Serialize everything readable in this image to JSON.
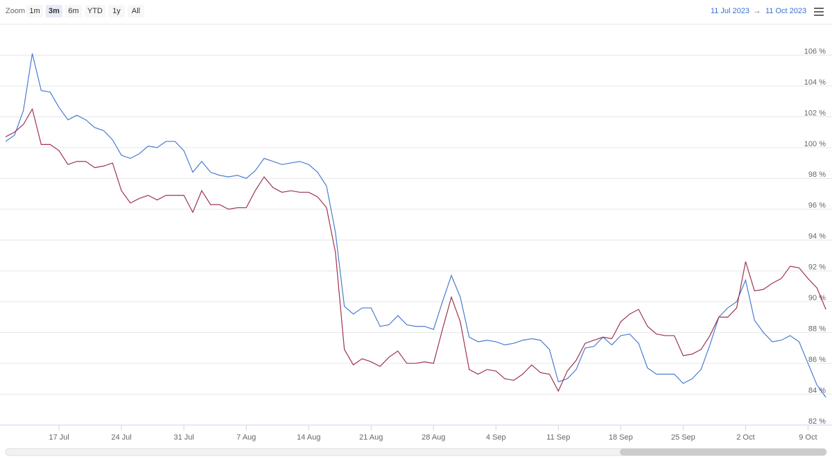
{
  "chart_data": {
    "type": "line",
    "zoom_label": "Zoom",
    "range_buttons": [
      "1m",
      "3m",
      "6m",
      "YTD",
      "1y",
      "All"
    ],
    "selected_button": "3m",
    "range_from": "11 Jul 2023",
    "range_arrow": "→",
    "range_to": "11 Oct 2023",
    "categories": [
      "11 Jul",
      "12 Jul",
      "13 Jul",
      "14 Jul",
      "15 Jul",
      "16 Jul",
      "17 Jul",
      "18 Jul",
      "19 Jul",
      "20 Jul",
      "21 Jul",
      "22 Jul",
      "23 Jul",
      "24 Jul",
      "25 Jul",
      "26 Jul",
      "27 Jul",
      "28 Jul",
      "29 Jul",
      "30 Jul",
      "31 Jul",
      "1 Aug",
      "2 Aug",
      "3 Aug",
      "4 Aug",
      "5 Aug",
      "6 Aug",
      "7 Aug",
      "8 Aug",
      "9 Aug",
      "10 Aug",
      "11 Aug",
      "12 Aug",
      "13 Aug",
      "14 Aug",
      "15 Aug",
      "16 Aug",
      "17 Aug",
      "18 Aug",
      "19 Aug",
      "20 Aug",
      "21 Aug",
      "22 Aug",
      "23 Aug",
      "24 Aug",
      "25 Aug",
      "26 Aug",
      "27 Aug",
      "28 Aug",
      "29 Aug",
      "30 Aug",
      "31 Aug",
      "1 Sep",
      "2 Sep",
      "3 Sep",
      "4 Sep",
      "5 Sep",
      "6 Sep",
      "7 Sep",
      "8 Sep",
      "9 Sep",
      "10 Sep",
      "11 Sep",
      "12 Sep",
      "13 Sep",
      "14 Sep",
      "15 Sep",
      "16 Sep",
      "17 Sep",
      "18 Sep",
      "19 Sep",
      "20 Sep",
      "21 Sep",
      "22 Sep",
      "23 Sep",
      "24 Sep",
      "25 Sep",
      "26 Sep",
      "27 Sep",
      "28 Sep",
      "29 Sep",
      "30 Sep",
      "1 Oct",
      "2 Oct",
      "3 Oct",
      "4 Oct",
      "5 Oct",
      "6 Oct",
      "7 Oct",
      "8 Oct",
      "9 Oct",
      "10 Oct",
      "11 Oct"
    ],
    "xticks": [
      "17 Jul",
      "24 Jul",
      "31 Jul",
      "7 Aug",
      "14 Aug",
      "21 Aug",
      "28 Aug",
      "4 Sep",
      "11 Sep",
      "18 Sep",
      "25 Sep",
      "2 Oct",
      "9 Oct"
    ],
    "series": [
      {
        "color": "#4a7bd0",
        "values": [
          100.4,
          100.8,
          102.4,
          106.1,
          103.7,
          103.6,
          102.6,
          101.8,
          102.1,
          101.8,
          101.3,
          101.1,
          100.5,
          99.5,
          99.3,
          99.6,
          100.1,
          100.0,
          100.4,
          100.4,
          99.8,
          98.4,
          99.1,
          98.4,
          98.2,
          98.1,
          98.2,
          98.0,
          98.5,
          99.3,
          99.1,
          98.9,
          99.0,
          99.1,
          98.9,
          98.4,
          97.5,
          94.5,
          89.7,
          89.2,
          89.6,
          89.6,
          88.4,
          88.5,
          89.1,
          88.5,
          88.4,
          88.4,
          88.2,
          90.0,
          91.7,
          90.3,
          87.7,
          87.4,
          87.5,
          87.4,
          87.2,
          87.3,
          87.5,
          87.6,
          87.5,
          86.9,
          84.8,
          85.0,
          85.6,
          87.0,
          87.1,
          87.7,
          87.2,
          87.8,
          87.9,
          87.3,
          85.7,
          85.3,
          85.3,
          85.3,
          84.7,
          85.0,
          85.6,
          87.2,
          89.0,
          89.6,
          90.0,
          91.4,
          88.8,
          88.0,
          87.4,
          87.5,
          87.8,
          87.4,
          86.0,
          84.6,
          83.8
        ]
      },
      {
        "color": "#9e3350",
        "values": [
          100.7,
          101.0,
          101.5,
          102.5,
          100.2,
          100.2,
          99.8,
          98.9,
          99.1,
          99.1,
          98.7,
          98.8,
          99.0,
          97.2,
          96.4,
          96.7,
          96.9,
          96.6,
          96.9,
          96.9,
          96.9,
          95.8,
          97.2,
          96.3,
          96.3,
          96.0,
          96.1,
          96.1,
          97.2,
          98.1,
          97.4,
          97.1,
          97.2,
          97.1,
          97.1,
          96.8,
          96.1,
          93.2,
          86.9,
          85.9,
          86.3,
          86.1,
          85.8,
          86.4,
          86.8,
          86.0,
          86.0,
          86.1,
          86.0,
          88.2,
          90.3,
          88.7,
          85.6,
          85.3,
          85.6,
          85.5,
          85.0,
          84.9,
          85.3,
          85.9,
          85.4,
          85.3,
          84.2,
          85.5,
          86.2,
          87.3,
          87.5,
          87.7,
          87.6,
          88.7,
          89.2,
          89.5,
          88.4,
          87.9,
          87.8,
          87.8,
          86.5,
          86.6,
          86.9,
          87.8,
          89.0,
          89.0,
          89.6,
          92.6,
          90.7,
          90.8,
          91.2,
          91.5,
          92.3,
          92.2,
          91.5,
          90.9,
          89.5
        ]
      }
    ],
    "ylim": [
      82,
      108
    ],
    "yticks": [
      {
        "value": 82,
        "label": "82 %"
      },
      {
        "value": 84,
        "label": "84 %"
      },
      {
        "value": 86,
        "label": "86 %"
      },
      {
        "value": 88,
        "label": "88 %"
      },
      {
        "value": 90,
        "label": "90 %"
      },
      {
        "value": 92,
        "label": "92 %"
      },
      {
        "value": 94,
        "label": "94 %"
      },
      {
        "value": 96,
        "label": "96 %"
      },
      {
        "value": 98,
        "label": "98 %"
      },
      {
        "value": 100,
        "label": "100 %"
      },
      {
        "value": 102,
        "label": "102 %"
      },
      {
        "value": 104,
        "label": "104 %"
      },
      {
        "value": 106,
        "label": "106 %"
      }
    ],
    "grid": true
  }
}
